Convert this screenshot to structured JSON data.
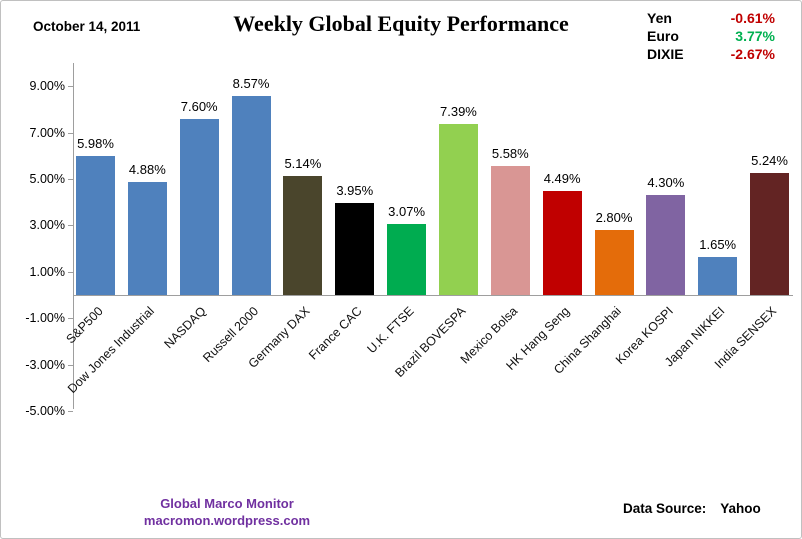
{
  "header": {
    "date": "October 14, 2011",
    "title": "Weekly Global Equity Performance"
  },
  "legend": {
    "items": [
      {
        "label": "Yen",
        "value": "-0.61%",
        "color": "#c00000"
      },
      {
        "label": "Euro",
        "value": "3.77%",
        "color": "#00b050"
      },
      {
        "label": "DIXIE",
        "value": "-2.67%",
        "color": "#c00000"
      }
    ]
  },
  "chart_data": {
    "type": "bar",
    "title": "Weekly Global Equity Performance",
    "categories": [
      "S&P500",
      "Dow Jones Industrial",
      "NASDAQ",
      "Russell 2000",
      "Germany DAX",
      "France CAC",
      "U.K. FTSE",
      "Brazil BOVESPA",
      "Mexico Bolsa",
      "HK Hang Seng",
      "China Shanghai",
      "Korea KOSPI",
      "Japan NIKKEI",
      "India SENSEX"
    ],
    "values": [
      5.98,
      4.88,
      7.6,
      8.57,
      5.14,
      3.95,
      3.07,
      7.39,
      5.58,
      4.49,
      2.8,
      4.3,
      1.65,
      5.24
    ],
    "data_labels": [
      "5.98%",
      "4.88%",
      "7.60%",
      "8.57%",
      "5.14%",
      "3.95%",
      "3.07%",
      "7.39%",
      "5.58%",
      "4.49%",
      "2.80%",
      "4.30%",
      "1.65%",
      "5.24%"
    ],
    "bar_colors": [
      "#4f81bd",
      "#4f81bd",
      "#4f81bd",
      "#4f81bd",
      "#4a452c",
      "#000000",
      "#00ac50",
      "#92d050",
      "#d99694",
      "#c00000",
      "#e46c0a",
      "#8064a2",
      "#4f81bd",
      "#632423"
    ],
    "y_ticks": [
      "9.00%",
      "7.00%",
      "5.00%",
      "3.00%",
      "1.00%",
      "-1.00%",
      "-3.00%",
      "-5.00%"
    ],
    "ylim": [
      -5,
      9.5
    ],
    "xlabel": "",
    "ylabel": "",
    "grid": "off",
    "legend_position": "none"
  },
  "footer": {
    "brand_line1": "Global Marco Monitor",
    "brand_line2": "macromon.wordpress.com",
    "brand_color": "#7030a0",
    "data_source_label": "Data Source:",
    "data_source_value": "Yahoo"
  }
}
